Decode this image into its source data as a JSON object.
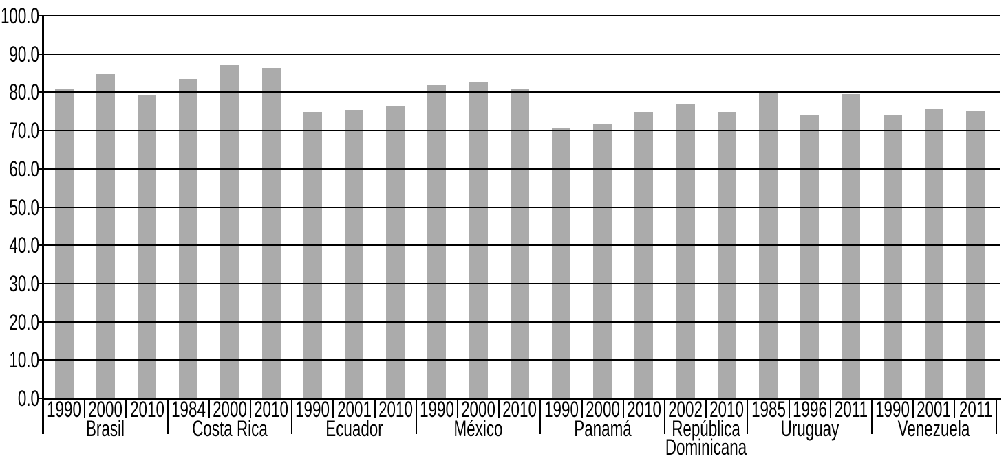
{
  "chart_data": {
    "type": "bar",
    "title": "",
    "xlabel": "",
    "ylabel": "",
    "ylim": [
      0,
      100
    ],
    "ytick_step": 10,
    "y_tick_labels": [
      "0.0",
      "10.0",
      "20.0",
      "30.0",
      "40.0",
      "50.0",
      "60.0",
      "70.0",
      "80.0",
      "90.0",
      "100.0"
    ],
    "grid": true,
    "legend_position": "none",
    "bar_color": "#ABABAB",
    "axis_color": "#000000",
    "text_color": "#000000",
    "background_color": "#FFFFFF",
    "groups": [
      {
        "country": "Brasil",
        "years": [
          "1990",
          "2000",
          "2010"
        ],
        "values": [
          81.0,
          84.8,
          79.2
        ]
      },
      {
        "country": "Costa Rica",
        "years": [
          "1984",
          "2000",
          "2010"
        ],
        "values": [
          83.4,
          87.1,
          86.4
        ]
      },
      {
        "country": "Ecuador",
        "years": [
          "1990",
          "2001",
          "2010"
        ],
        "values": [
          74.8,
          75.4,
          76.3
        ]
      },
      {
        "country": "México",
        "years": [
          "1990",
          "2000",
          "2010"
        ],
        "values": [
          81.9,
          82.6,
          80.9
        ]
      },
      {
        "country": "Panamá",
        "years": [
          "1990",
          "2000",
          "2010"
        ],
        "values": [
          70.6,
          71.9,
          74.8
        ]
      },
      {
        "country": "República Dominicana",
        "years": [
          "2002",
          "2010"
        ],
        "values": [
          76.9,
          74.8
        ]
      },
      {
        "country": "Uruguay",
        "years": [
          "1985",
          "1996",
          "2011"
        ],
        "values": [
          80.0,
          74.0,
          79.6
        ]
      },
      {
        "country": "Venezuela",
        "years": [
          "1990",
          "2001",
          "2011"
        ],
        "values": [
          74.2,
          75.7,
          75.2
        ]
      }
    ]
  }
}
